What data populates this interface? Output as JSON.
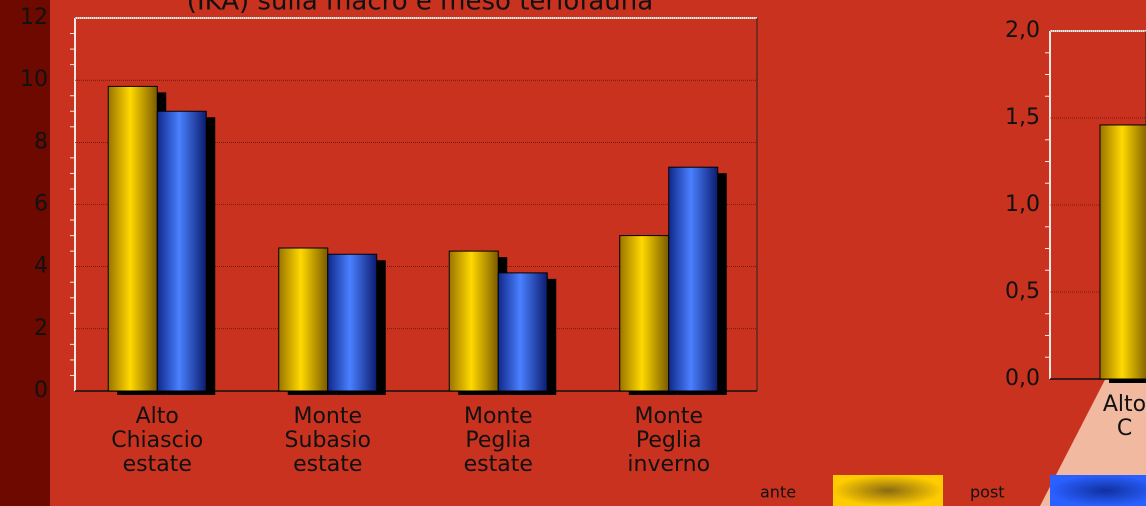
{
  "chart_data": [
    {
      "type": "bar",
      "title": "(IKA) sulla macro e meso teriofauna",
      "categories": [
        "Alto Chiascio estate",
        "Monte Subasio estate",
        "Monte Peglia estate",
        "Monte Peglia inverno"
      ],
      "series": [
        {
          "name": "ante",
          "color": "#e6b800",
          "values": [
            9.8,
            4.6,
            4.5,
            5.0
          ]
        },
        {
          "name": "post",
          "color": "#2a55e0",
          "values": [
            9.0,
            4.4,
            3.8,
            7.2
          ]
        }
      ],
      "ylim": [
        0,
        12
      ],
      "yticks": [
        0,
        2,
        4,
        6,
        8,
        10,
        12
      ],
      "grid": true,
      "legend": "bottom"
    },
    {
      "type": "bar",
      "categories": [
        "Alto C"
      ],
      "series": [
        {
          "name": "ante",
          "color": "#e6b800",
          "values": [
            1.46
          ]
        }
      ],
      "ylim": [
        0,
        2
      ],
      "yticks": [
        {
          "value": 0,
          "label": "0,0"
        },
        {
          "value": 0.5,
          "label": "0,5"
        },
        {
          "value": 1,
          "label": "1,0"
        },
        {
          "value": 1.5,
          "label": "1,5"
        },
        {
          "value": 2,
          "label": "2,0"
        }
      ],
      "grid": true
    }
  ]
}
